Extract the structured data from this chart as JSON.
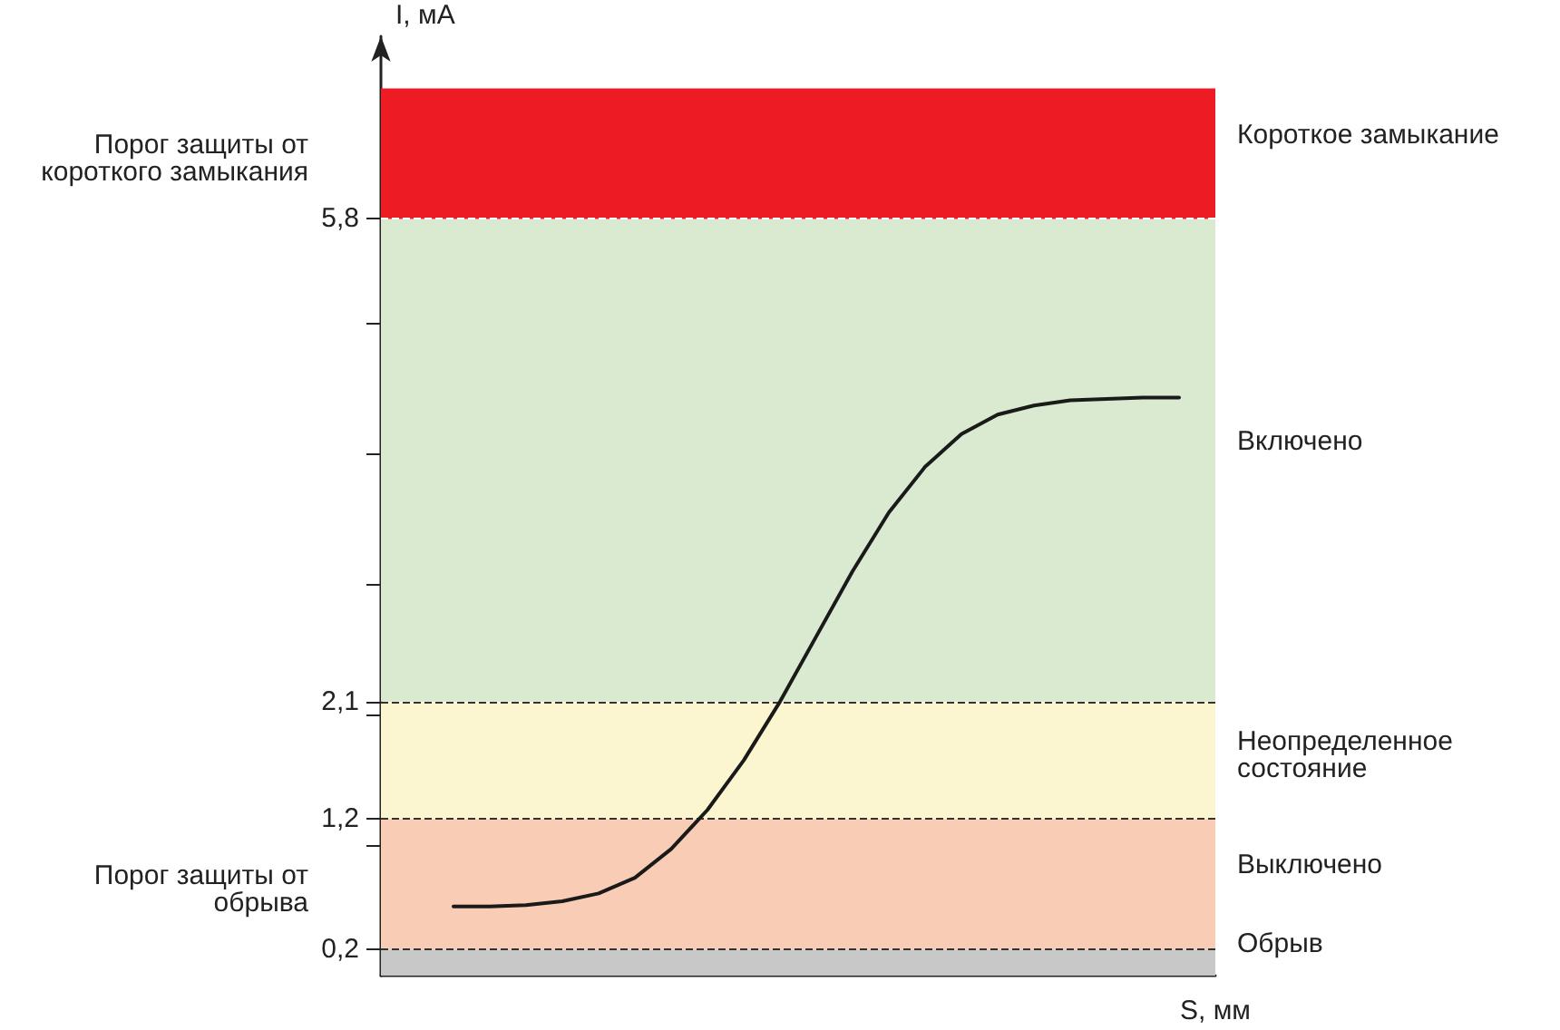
{
  "chart_data": {
    "type": "line",
    "xlabel": "S, мм",
    "ylabel": "I, мА",
    "categories": [
      null,
      null,
      null,
      null,
      null,
      null,
      null,
      null,
      null,
      null,
      null,
      null,
      null,
      null,
      null,
      null,
      null,
      null,
      null,
      null,
      null,
      null,
      null,
      null
    ],
    "series": [
      {
        "color": "#1a1a1a",
        "values": [
          null,
          null,
          0.53,
          0.53,
          0.54,
          0.57,
          0.63,
          0.75,
          0.97,
          1.27,
          1.65,
          2.1,
          2.6,
          3.1,
          3.55,
          3.9,
          4.15,
          4.3,
          4.37,
          4.41,
          4.42,
          4.43,
          4.43,
          null
        ]
      }
    ],
    "ylim": [
      0,
      7.2
    ],
    "yticks": [
      {
        "value": 0.2,
        "label": "0,2"
      },
      {
        "value": 1,
        "label": null
      },
      {
        "value": 1.2,
        "label": "1,2"
      },
      {
        "value": 2,
        "label": null
      },
      {
        "value": 2.1,
        "label": "2,1"
      },
      {
        "value": 3,
        "label": null
      },
      {
        "value": 4,
        "label": null
      },
      {
        "value": 5,
        "label": null
      },
      {
        "value": 5.8,
        "label": "5,8"
      }
    ],
    "bands": [
      {
        "axis": "y",
        "from": 0,
        "to": 0.2,
        "label": "Обрыв",
        "color": "#c8c8c8"
      },
      {
        "axis": "y",
        "from": 0.2,
        "to": 1.2,
        "label": "Выключено",
        "color": "#f9cdb5"
      },
      {
        "axis": "y",
        "from": 1.2,
        "to": 2.1,
        "label": "Неопределенное состояние",
        "color": "#fbf6cf"
      },
      {
        "axis": "y",
        "from": 2.1,
        "to": 5.8,
        "label": "Включено",
        "color": "#d9ead0"
      },
      {
        "axis": "y",
        "from": 5.8,
        "to": 6.8,
        "label": "Короткое замыкание",
        "color": "#ed1c24"
      }
    ],
    "ref_lines": [
      {
        "axis": "y",
        "value": 0.2,
        "label": "Порог защиты от обрыва",
        "line_style": "dashed",
        "color": "#333333"
      },
      {
        "axis": "y",
        "value": 1.2,
        "line_style": "dashed",
        "color": "#333333"
      },
      {
        "axis": "y",
        "value": 2.1,
        "line_style": "dashed",
        "color": "#333333"
      },
      {
        "axis": "y",
        "value": 5.8,
        "label": "Порог защиты от короткого замыкания",
        "line_style": "dashed",
        "color": "#ffffff"
      }
    ],
    "tick_labels": "y",
    "grid": false,
    "marker": "none",
    "line_style": "solid"
  }
}
